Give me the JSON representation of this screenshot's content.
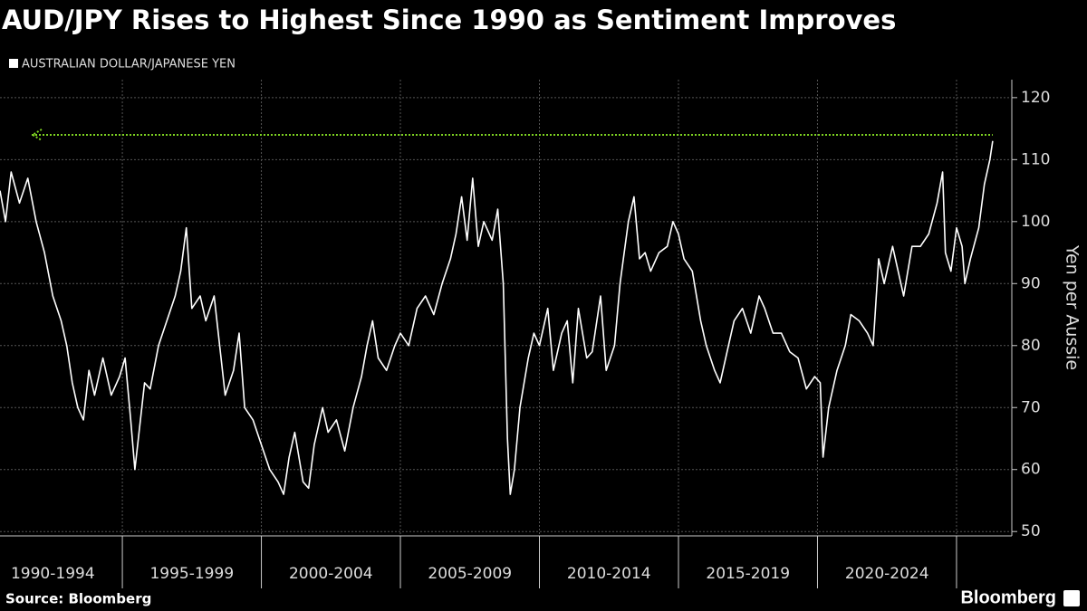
{
  "chart_data": {
    "type": "line",
    "title": "AUD/JPY Rises to Highest Since 1990 as Sentiment Improves",
    "y_label": "Yen per Aussie",
    "source": "Source: Bloomberg",
    "brand": "Bloomberg",
    "x_periods": [
      {
        "start": 1990,
        "end": 1995,
        "label": "1990-1994"
      },
      {
        "start": 1995,
        "end": 2000,
        "label": "1995-1999"
      },
      {
        "start": 2000,
        "end": 2005,
        "label": "2000-2004"
      },
      {
        "start": 2005,
        "end": 2010,
        "label": "2005-2009"
      },
      {
        "start": 2010,
        "end": 2015,
        "label": "2010-2014"
      },
      {
        "start": 2015,
        "end": 2020,
        "label": "2015-2019"
      },
      {
        "start": 2020,
        "end": 2025,
        "label": "2020-2024"
      }
    ],
    "xlim": [
      1990.6,
      2026.5
    ],
    "xticks": [
      1995,
      2000,
      2005,
      2010,
      2015,
      2020,
      2025
    ],
    "ylim": [
      49.3,
      122.9
    ],
    "yticks": [
      50,
      60,
      70,
      80,
      90,
      100,
      110,
      120
    ],
    "grid": true,
    "reference_line": {
      "value": 114,
      "color": "#7ed321"
    },
    "x": [
      1990.6,
      1990.8,
      1991.0,
      1991.3,
      1991.6,
      1991.9,
      1992.2,
      1992.5,
      1992.8,
      1993.0,
      1993.2,
      1993.4,
      1993.6,
      1993.8,
      1994.0,
      1994.3,
      1994.6,
      1994.9,
      1995.1,
      1995.3,
      1995.45,
      1995.6,
      1995.8,
      1996.0,
      1996.3,
      1996.6,
      1996.9,
      1997.1,
      1997.3,
      1997.5,
      1997.8,
      1998.0,
      1998.3,
      1998.5,
      1998.7,
      1999.0,
      1999.2,
      1999.4,
      1999.7,
      2000.0,
      2000.3,
      2000.6,
      2000.8,
      2001.0,
      2001.2,
      2001.5,
      2001.7,
      2001.9,
      2002.2,
      2002.4,
      2002.7,
      2003.0,
      2003.3,
      2003.6,
      2003.8,
      2004.0,
      2004.2,
      2004.5,
      2004.8,
      2005.0,
      2005.3,
      2005.6,
      2005.9,
      2006.2,
      2006.5,
      2006.8,
      2007.0,
      2007.2,
      2007.4,
      2007.6,
      2007.8,
      2008.0,
      2008.3,
      2008.5,
      2008.7,
      2008.85,
      2008.95,
      2009.1,
      2009.3,
      2009.6,
      2009.8,
      2010.0,
      2010.3,
      2010.5,
      2010.8,
      2011.0,
      2011.2,
      2011.4,
      2011.7,
      2011.9,
      2012.2,
      2012.4,
      2012.7,
      2012.9,
      2013.2,
      2013.4,
      2013.6,
      2013.8,
      2014.0,
      2014.3,
      2014.6,
      2014.8,
      2015.0,
      2015.2,
      2015.5,
      2015.8,
      2016.0,
      2016.3,
      2016.5,
      2016.8,
      2017.0,
      2017.3,
      2017.6,
      2017.9,
      2018.1,
      2018.4,
      2018.7,
      2019.0,
      2019.3,
      2019.6,
      2019.9,
      2020.1,
      2020.2,
      2020.4,
      2020.7,
      2021.0,
      2021.2,
      2021.5,
      2021.8,
      2022.0,
      2022.2,
      2022.4,
      2022.7,
      2022.9,
      2023.1,
      2023.4,
      2023.7,
      2024.0,
      2024.3,
      2024.5,
      2024.6,
      2024.8,
      2025.0,
      2025.2,
      2025.3,
      2025.5,
      2025.8,
      2026.0,
      2026.2,
      2026.3
    ],
    "series": [
      {
        "name": "AUSTRALIAN DOLLAR/JAPANESE YEN",
        "color": "#ffffff",
        "values": [
          105,
          100,
          108,
          103,
          107,
          100,
          95,
          88,
          84,
          80,
          74,
          70,
          68,
          76,
          72,
          78,
          72,
          75,
          78,
          68,
          60,
          66,
          74,
          73,
          80,
          84,
          88,
          92,
          99,
          86,
          88,
          84,
          88,
          80,
          72,
          76,
          82,
          70,
          68,
          64,
          60,
          58,
          56,
          62,
          66,
          58,
          57,
          64,
          70,
          66,
          68,
          63,
          70,
          75,
          80,
          84,
          78,
          76,
          80,
          82,
          80,
          86,
          88,
          85,
          90,
          94,
          98,
          104,
          97,
          107,
          96,
          100,
          97,
          102,
          90,
          65,
          56,
          60,
          70,
          78,
          82,
          80,
          86,
          76,
          82,
          84,
          74,
          86,
          78,
          79,
          88,
          76,
          80,
          90,
          100,
          104,
          94,
          95,
          92,
          95,
          96,
          100,
          98,
          94,
          92,
          84,
          80,
          76,
          74,
          80,
          84,
          86,
          82,
          88,
          86,
          82,
          82,
          79,
          78,
          73,
          75,
          74,
          62,
          70,
          76,
          80,
          85,
          84,
          82,
          80,
          94,
          90,
          96,
          92,
          88,
          96,
          96,
          98,
          103,
          108,
          95,
          92,
          99,
          96,
          90,
          94,
          99,
          106,
          110,
          113
        ]
      }
    ]
  }
}
